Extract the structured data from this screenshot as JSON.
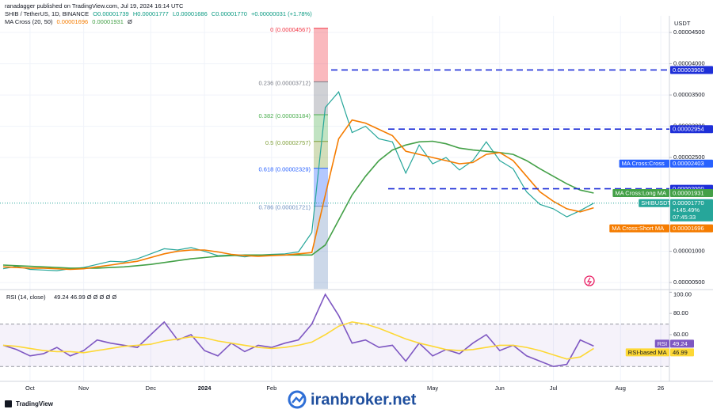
{
  "header": {
    "published": "ranadagger published on TradingView.com, Jul 19, 2024 16:14 UTC",
    "symbol": "SHIB / TetherUS, 1D, BINANCE",
    "ohlc": [
      "O0.00001739",
      "H0.00001777",
      "L0.00001686",
      "C0.00001770",
      "+0.00000031 (+1.78%)"
    ],
    "indicator": "MA Cross (20, 50)",
    "indicator_short": "0.00001696",
    "indicator_long": "0.00001931",
    "indicator_flag": "Ø"
  },
  "chart_data": [
    {
      "type": "line",
      "currency": "USDT",
      "categories": [
        null,
        null,
        "Oct",
        null,
        null,
        null,
        "Nov",
        null,
        null,
        null,
        null,
        "Dec",
        null,
        null,
        null,
        "2024",
        null,
        null,
        null,
        null,
        "Feb",
        null,
        null,
        null,
        null,
        null,
        null,
        null,
        null,
        null,
        null,
        null,
        "May",
        null,
        null,
        null,
        null,
        "Jun",
        null,
        null,
        null,
        "Jul",
        null,
        null,
        null,
        null,
        "Aug",
        null,
        null,
        "26"
      ],
      "series": [
        {
          "name": "SHIBUSDT",
          "color": "#26a69a",
          "change": "+145.49%",
          "countdown": "07:45:33",
          "values": [
            7.2e-06,
            7.6e-06,
            7.1e-06,
            7e-06,
            6.9e-06,
            7.2e-06,
            7.4e-06,
            7.9e-06,
            8.4e-06,
            8.3e-06,
            8.8e-06,
            9.6e-06,
            1.04e-05,
            1.02e-05,
            1.06e-05,
            1e-05,
            9.3e-06,
            9.4e-06,
            9.1e-06,
            9.4e-06,
            9.5e-06,
            9.6e-06,
            9.9e-06,
            1.3e-05,
            3.3e-05,
            3.55e-05,
            2.9e-05,
            3e-05,
            2.8e-05,
            2.75e-05,
            2.25e-05,
            2.7e-05,
            2.4e-05,
            2.5e-05,
            2.3e-05,
            2.45e-05,
            2.75e-05,
            2.45e-05,
            2.32e-05,
            1.95e-05,
            1.75e-05,
            1.68e-05,
            1.55e-05,
            1.65e-05,
            1.77e-05,
            null,
            null,
            null,
            null,
            null
          ],
          "value_labels": [
            null,
            null,
            null,
            null,
            null,
            null,
            null,
            null,
            null,
            null,
            null,
            null,
            null,
            null,
            null,
            null,
            null,
            null,
            null,
            null,
            null,
            null,
            null,
            null,
            null,
            null,
            null,
            null,
            null,
            null,
            null,
            null,
            null,
            null,
            null,
            null,
            null,
            null,
            null,
            null,
            null,
            null,
            null,
            null,
            "0.00001770",
            null,
            null,
            null,
            null,
            null
          ]
        },
        {
          "name": "MA Cross:Long MA",
          "color": "#43a047",
          "values": [
            7.8e-06,
            7.7e-06,
            7.6e-06,
            7.5e-06,
            7.4e-06,
            7.3e-06,
            7.3e-06,
            7.3e-06,
            7.4e-06,
            7.5e-06,
            7.7e-06,
            7.9e-06,
            8.2e-06,
            8.5e-06,
            8.8e-06,
            9e-06,
            9.2e-06,
            9.3e-06,
            9.4e-06,
            9.4e-06,
            9.4e-06,
            9.4e-06,
            9.4e-06,
            9.4e-06,
            1.1e-05,
            1.5e-05,
            1.9e-05,
            2.2e-05,
            2.45e-05,
            2.62e-05,
            2.7e-05,
            2.75e-05,
            2.76e-05,
            2.72e-05,
            2.65e-05,
            2.62e-05,
            2.6e-05,
            2.58e-05,
            2.55e-05,
            2.45e-05,
            2.32e-05,
            2.2e-05,
            2.08e-05,
            1.98e-05,
            1.931e-05,
            null,
            null,
            null,
            null,
            null
          ]
        },
        {
          "name": "MA Cross:Short MA",
          "color": "#f57c00",
          "values": [
            7.5e-06,
            7.4e-06,
            7.3e-06,
            7.3e-06,
            7.2e-06,
            7.1e-06,
            7.2e-06,
            7.5e-06,
            7.8e-06,
            8.1e-06,
            8.4e-06,
            9e-06,
            9.6e-06,
            1e-05,
            1.02e-05,
            1.02e-05,
            9.9e-06,
            9.5e-06,
            9.3e-06,
            9.2e-06,
            9.3e-06,
            9.4e-06,
            9.6e-06,
            9.8e-06,
            1.9e-05,
            2.8e-05,
            3.1e-05,
            3.05e-05,
            2.95e-05,
            2.85e-05,
            2.6e-05,
            2.55e-05,
            2.5e-05,
            2.45e-05,
            2.4e-05,
            2.42e-05,
            2.55e-05,
            2.58e-05,
            2.45e-05,
            2.2e-05,
            1.95e-05,
            1.8e-05,
            1.68e-05,
            1.63e-05,
            1.696e-05,
            null,
            null,
            null,
            null,
            null
          ]
        }
      ],
      "levels": [
        {
          "value": 3.9e-05,
          "label": "0.00003900",
          "color": "#1e2fd8"
        },
        {
          "value": 2.954e-05,
          "label": "0.00002954",
          "color": "#1e2fd8"
        },
        {
          "value": 2e-05,
          "label": "0.00002000",
          "color": "#1e2fd8"
        }
      ],
      "markers": [
        {
          "name": "MA Cross:Cross",
          "value": 2.403e-05,
          "label": "0.00002403",
          "color": "#2962ff"
        }
      ],
      "fib_levels": [
        {
          "value": 4.567e-05,
          "label": "0 (0.00004567)",
          "color": "#f23645"
        },
        {
          "value": 3.712e-05,
          "label": "0.236 (0.00003712)",
          "color": "#787b86"
        },
        {
          "value": 3.184e-05,
          "label": "0.382 (0.00003184)",
          "color": "#4caf50"
        },
        {
          "value": 2.757e-05,
          "label": "0.5 (0.00002757)",
          "color": "#81a03a"
        },
        {
          "value": 2.329e-05,
          "label": "0.618 (0.00002329)",
          "color": "#2962ff"
        },
        {
          "value": 1.721e-05,
          "label": "0.786 (0.00001721)",
          "color": "#6c8ebf"
        }
      ],
      "ylim": [
        4e-06,
        4.64e-05
      ],
      "yticks": [
        {
          "value": 4.5e-05,
          "label": "0.00004500"
        },
        {
          "value": 4e-05,
          "label": "0.00004000"
        },
        {
          "value": 3.5e-05,
          "label": "0.00003500"
        },
        {
          "value": 3e-05,
          "label": "0.00003000"
        },
        {
          "value": 2.5e-05,
          "label": "0.00002500"
        },
        {
          "value": 1e-05,
          "label": "0.00001000"
        },
        {
          "value": 5e-06,
          "label": "0.00000500"
        }
      ],
      "grid": true
    },
    {
      "type": "line",
      "title": "RSI (14, close)",
      "title_values": "49.24 46.99 Ø Ø Ø Ø Ø",
      "series": [
        {
          "name": "RSI",
          "color": "#7e57c2",
          "values": [
            50,
            46,
            40,
            42,
            48,
            40,
            45,
            55,
            52,
            50,
            48,
            60,
            72,
            55,
            60,
            45,
            40,
            52,
            44,
            50,
            48,
            52,
            55,
            70,
            98,
            78,
            52,
            55,
            48,
            50,
            35,
            52,
            40,
            46,
            42,
            52,
            60,
            45,
            50,
            40,
            35,
            30,
            32,
            55,
            49.24,
            null,
            null,
            null,
            null,
            null
          ]
        },
        {
          "name": "RSI-based MA",
          "color": "#fdd835",
          "values": [
            50,
            49,
            47,
            45,
            44,
            44,
            43,
            45,
            47,
            49,
            50,
            51,
            54,
            56,
            58,
            57,
            54,
            52,
            50,
            48,
            47,
            48,
            50,
            53,
            60,
            68,
            72,
            70,
            66,
            61,
            56,
            52,
            49,
            46,
            45,
            46,
            48,
            50,
            50,
            48,
            45,
            41,
            37,
            39,
            46.99,
            null,
            null,
            null,
            null,
            null
          ]
        }
      ],
      "band": [
        30,
        70
      ],
      "ylim": [
        16,
        101
      ],
      "yticks": [
        {
          "value": 100,
          "label": "100.00"
        },
        {
          "value": 80,
          "label": "80.00"
        },
        {
          "value": 60,
          "label": "60.00"
        }
      ]
    }
  ],
  "footer": {
    "brand": "TradingView",
    "watermark": "iranbroker.net"
  }
}
